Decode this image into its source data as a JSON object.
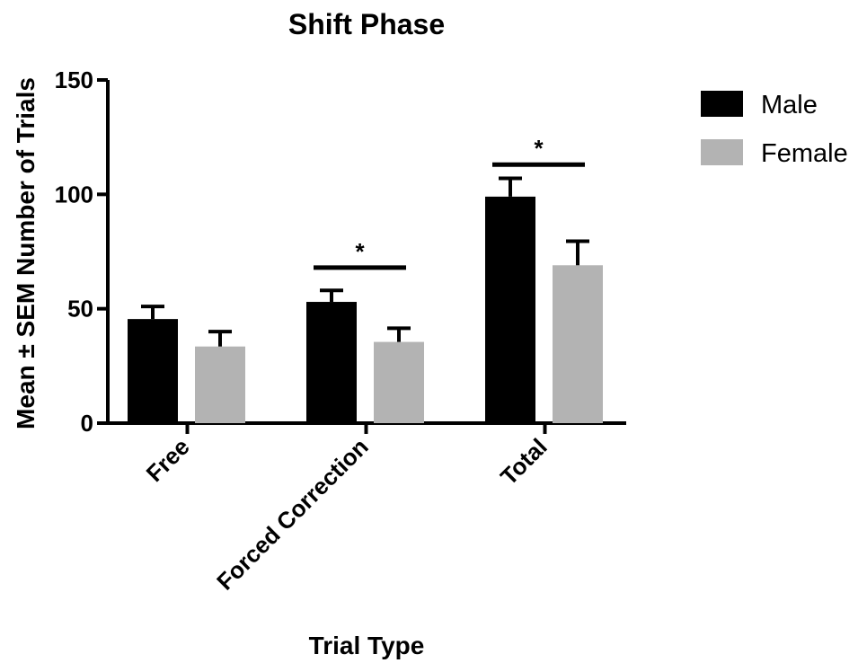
{
  "chart_data": {
    "type": "bar",
    "title": "Shift Phase",
    "xlabel": "Trial Type",
    "ylabel": "Mean ± SEM Number of Trials",
    "categories": [
      "Free",
      "Forced Correction",
      "Total"
    ],
    "series": [
      {
        "name": "Male",
        "color": "#000000",
        "values": [
          45.5,
          53,
          99
        ],
        "sem": [
          5.5,
          5,
          8
        ]
      },
      {
        "name": "Female",
        "color": "#b3b3b3",
        "values": [
          33.5,
          35.5,
          69
        ],
        "sem": [
          6.5,
          6,
          10.5
        ]
      }
    ],
    "ylim": [
      0,
      150
    ],
    "yticks": [
      "0",
      "50",
      "100",
      "150"
    ],
    "significance": [
      {
        "category_index": 1,
        "label": "*",
        "y": 68
      },
      {
        "category_index": 2,
        "label": "*",
        "y": 113
      }
    ],
    "legend_position": "top-right",
    "grid": false
  }
}
